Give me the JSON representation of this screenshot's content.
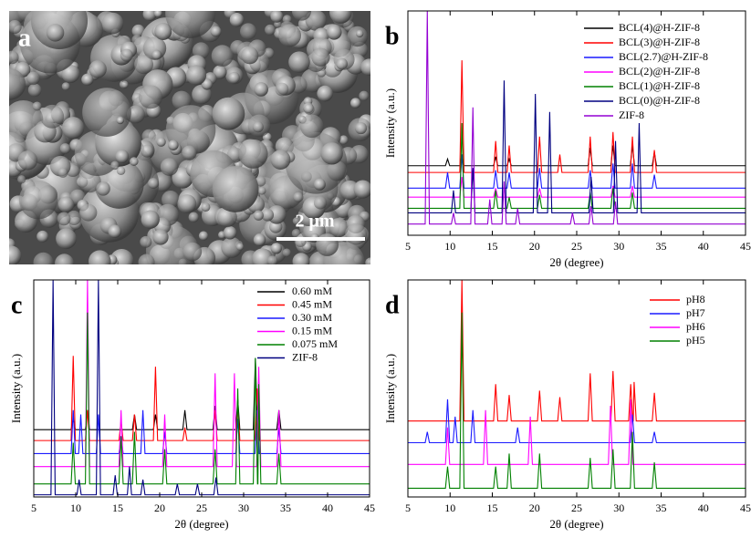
{
  "panel_a": {
    "label": "a",
    "scale_bar": "2 μm"
  },
  "chart_data": [
    {
      "type": "line",
      "panel_label": "b",
      "x_label": "2θ (degree)",
      "y_label": "Intensity (a.u.)",
      "xlim": [
        5,
        45
      ],
      "xticks": [
        5,
        10,
        15,
        20,
        25,
        30,
        35,
        40,
        45
      ],
      "ylim": [
        0,
        100
      ],
      "series": [
        {
          "name": "BCL(4)@H-ZIF-8",
          "color": "#000000",
          "x": [
            5,
            9.45,
            9.7,
            9.95,
            11.15,
            11.4,
            11.65,
            15.15,
            15.4,
            15.65,
            16.75,
            17,
            17.25,
            26.35,
            26.6,
            26.85,
            29.05,
            29.3,
            29.55,
            31.35,
            31.6,
            31.85,
            33.95,
            34.2,
            34.45,
            45
          ],
          "values": [
            31,
            31,
            34,
            31,
            31,
            36,
            31,
            31,
            35,
            31,
            31,
            34,
            31,
            31,
            39,
            31,
            31,
            40,
            31,
            31,
            40,
            31,
            31,
            37,
            31,
            31
          ]
        },
        {
          "name": "BCL(3)@H-ZIF-8",
          "color": "#ff0000",
          "x": [
            5,
            11.15,
            11.4,
            11.65,
            15.15,
            15.4,
            15.65,
            16.75,
            17,
            17.25,
            20.35,
            20.6,
            20.85,
            22.75,
            23,
            23.25,
            26.35,
            26.6,
            26.85,
            29.05,
            29.3,
            29.55,
            31.35,
            31.6,
            31.85,
            33.95,
            34.2,
            34.45,
            45
          ],
          "values": [
            28,
            28,
            78,
            28,
            28,
            42,
            28,
            28,
            40,
            28,
            28,
            44,
            28,
            28,
            36,
            28,
            28,
            44,
            28,
            28,
            46,
            28,
            28,
            44,
            28,
            28,
            38,
            28,
            28
          ]
        },
        {
          "name": "BCL(2.7)@H-ZIF-8",
          "color": "#1a1aff",
          "x": [
            5,
            9.45,
            9.7,
            9.95,
            11.15,
            11.4,
            11.65,
            15.15,
            15.4,
            15.65,
            16.75,
            17,
            17.25,
            20.35,
            20.6,
            20.85,
            26.35,
            26.6,
            26.85,
            29.05,
            29.3,
            29.55,
            31.35,
            31.6,
            31.85,
            33.95,
            34.2,
            34.45,
            45
          ],
          "values": [
            21,
            21,
            28,
            21,
            21,
            36,
            21,
            21,
            29,
            21,
            21,
            28,
            21,
            21,
            30,
            21,
            21,
            29,
            21,
            21,
            32,
            21,
            21,
            32,
            21,
            21,
            27,
            21,
            21
          ]
        },
        {
          "name": "BCL(2)@H-ZIF-8",
          "color": "#ff00ff",
          "x": [
            5,
            11.15,
            11.4,
            11.65,
            15.15,
            15.4,
            15.65,
            20.35,
            20.6,
            20.85,
            29.05,
            29.3,
            29.55,
            31.35,
            31.6,
            31.85,
            45
          ],
          "values": [
            17,
            17,
            26,
            17,
            17,
            21,
            17,
            17,
            21,
            17,
            17,
            22,
            17,
            17,
            22,
            17,
            17
          ]
        },
        {
          "name": "BCL(1)@H-ZIF-8",
          "color": "#008000",
          "x": [
            5,
            11.15,
            11.4,
            11.65,
            15.15,
            15.4,
            15.65,
            16.75,
            17,
            17.25,
            20.35,
            20.6,
            20.85,
            26.35,
            26.6,
            26.85,
            29.05,
            29.3,
            29.55,
            31.35,
            31.6,
            31.85,
            45
          ],
          "values": [
            12,
            12,
            50,
            12,
            12,
            20,
            12,
            12,
            17,
            12,
            12,
            18,
            12,
            12,
            19,
            12,
            12,
            21,
            12,
            12,
            19,
            12,
            12
          ]
        },
        {
          "name": "BCL(0)@H-ZIF-8",
          "color": "#000080",
          "x": [
            5,
            10.15,
            10.4,
            10.65,
            12.45,
            12.7,
            12.95,
            16.15,
            16.4,
            16.65,
            19.85,
            20.1,
            20.35,
            21.55,
            21.8,
            22.05,
            26.45,
            26.7,
            26.95,
            29.35,
            29.6,
            29.85,
            32.15,
            32.4,
            32.65,
            45
          ],
          "values": [
            10,
            10,
            20,
            10,
            10,
            30,
            10,
            10,
            69,
            10,
            10,
            63,
            10,
            10,
            55,
            10,
            10,
            26,
            10,
            10,
            42,
            10,
            10,
            50,
            10,
            10
          ]
        },
        {
          "name": "ZIF-8",
          "color": "#9400d3",
          "x": [
            5,
            7.05,
            7.3,
            7.55,
            10.15,
            10.4,
            10.65,
            12.45,
            12.7,
            12.95,
            14.45,
            14.7,
            14.95,
            16.15,
            16.4,
            16.65,
            17.75,
            18,
            18.25,
            24.25,
            24.5,
            24.75,
            26.45,
            26.7,
            26.95,
            29.35,
            29.6,
            29.85,
            45
          ],
          "values": [
            5,
            5,
            100,
            5,
            5,
            10,
            5,
            5,
            57,
            5,
            5,
            16,
            5,
            5,
            24,
            5,
            5,
            12,
            5,
            5,
            10,
            5,
            5,
            13,
            5,
            5,
            15,
            5,
            5
          ]
        }
      ]
    },
    {
      "type": "line",
      "panel_label": "c",
      "x_label": "2θ (degree)",
      "y_label": "Intensity (a.u.)",
      "xlim": [
        5,
        45
      ],
      "xticks": [
        5,
        10,
        15,
        20,
        25,
        30,
        35,
        40,
        45
      ],
      "ylim": [
        0,
        100
      ],
      "series": [
        {
          "name": "0.60 mM",
          "color": "#000000",
          "x": [
            5,
            9.45,
            9.7,
            9.95,
            11.15,
            11.4,
            11.65,
            16.75,
            17,
            17.25,
            19.25,
            19.5,
            19.75,
            22.75,
            23,
            23.25,
            26.35,
            26.6,
            26.85,
            29.05,
            29.3,
            29.55,
            31.15,
            31.4,
            31.65,
            33.95,
            34.2,
            34.45,
            45
          ],
          "values": [
            31,
            31,
            36,
            31,
            31,
            40,
            31,
            31,
            38,
            31,
            31,
            38,
            31,
            31,
            40,
            31,
            31,
            42,
            31,
            31,
            45,
            31,
            31,
            64,
            31,
            31,
            40,
            31,
            31
          ]
        },
        {
          "name": "0.45 mM",
          "color": "#ff0000",
          "x": [
            5,
            9.45,
            9.7,
            9.95,
            11.15,
            11.4,
            11.65,
            15.15,
            15.4,
            15.65,
            16.75,
            17,
            17.25,
            19.25,
            19.5,
            19.75,
            22.75,
            23,
            23.25,
            26.35,
            26.6,
            26.85,
            29.05,
            29.3,
            29.55,
            31.35,
            31.6,
            31.85,
            45
          ],
          "values": [
            26,
            26,
            65,
            26,
            26,
            40,
            26,
            26,
            35,
            26,
            26,
            38,
            26,
            26,
            60,
            26,
            26,
            32,
            26,
            26,
            40,
            26,
            26,
            42,
            26,
            26,
            50,
            26,
            26
          ]
        },
        {
          "name": "0.30 mM",
          "color": "#1a1aff",
          "x": [
            5,
            9.45,
            9.7,
            9.95,
            10.35,
            10.6,
            10.85,
            12.45,
            12.7,
            12.95,
            15.15,
            15.4,
            15.65,
            17.75,
            18,
            18.25,
            20.35,
            20.6,
            20.85,
            29.05,
            29.3,
            29.55,
            31.35,
            31.6,
            31.85,
            33.95,
            34.2,
            34.45,
            45
          ],
          "values": [
            20,
            20,
            40,
            20,
            20,
            38,
            20,
            20,
            38,
            20,
            20,
            28,
            20,
            20,
            40,
            20,
            20,
            30,
            20,
            20,
            36,
            20,
            20,
            40,
            20,
            20,
            32,
            20,
            20
          ]
        },
        {
          "name": "0.15 mM",
          "color": "#ff00ff",
          "x": [
            5,
            11.15,
            11.4,
            11.65,
            15.15,
            15.4,
            15.65,
            20.35,
            20.6,
            20.85,
            26.35,
            26.6,
            26.85,
            28.65,
            28.9,
            29.15,
            31.55,
            31.8,
            32.05,
            33.95,
            34.2,
            34.45,
            45
          ],
          "values": [
            14,
            14,
            100,
            14,
            14,
            40,
            14,
            14,
            38,
            14,
            14,
            57,
            14,
            14,
            57,
            14,
            14,
            60,
            14,
            14,
            40,
            14,
            14
          ]
        },
        {
          "name": "0.075 mM",
          "color": "#008000",
          "x": [
            5,
            9.45,
            9.7,
            9.95,
            11.15,
            11.4,
            11.65,
            15.15,
            15.4,
            15.65,
            16.75,
            17,
            17.25,
            20.35,
            20.6,
            20.85,
            26.35,
            26.6,
            26.85,
            29.05,
            29.3,
            29.55,
            31.15,
            31.4,
            31.65,
            31.7,
            31.8,
            32.05,
            33.95,
            34.2,
            34.45,
            45
          ],
          "values": [
            6,
            6,
            25,
            6,
            6,
            85,
            6,
            6,
            28,
            6,
            6,
            30,
            6,
            6,
            22,
            6,
            6,
            22,
            6,
            6,
            50,
            6,
            6,
            64,
            6,
            6,
            52,
            6,
            6,
            20,
            6,
            6
          ]
        },
        {
          "name": "ZIF-8",
          "color": "#000080",
          "x": [
            5,
            7.05,
            7.3,
            7.55,
            10.15,
            10.4,
            10.65,
            12.45,
            12.7,
            12.95,
            14.45,
            14.7,
            14.95,
            16.15,
            16.4,
            16.65,
            17.75,
            18,
            18.25,
            21.85,
            22.1,
            22.35,
            24.25,
            24.5,
            24.75,
            26.45,
            26.7,
            26.95,
            45
          ],
          "values": [
            1,
            1,
            100,
            1,
            1,
            8,
            1,
            1,
            100,
            1,
            1,
            10,
            1,
            1,
            14,
            1,
            1,
            8,
            1,
            1,
            6,
            1,
            1,
            6,
            1,
            1,
            9,
            1,
            1
          ]
        }
      ]
    },
    {
      "type": "line",
      "panel_label": "d",
      "x_label": "2θ (degree)",
      "y_label": "Intensity (a.u.)",
      "xlim": [
        5,
        45
      ],
      "xticks": [
        5,
        10,
        15,
        20,
        25,
        30,
        35,
        40,
        45
      ],
      "ylim": [
        0,
        100
      ],
      "series": [
        {
          "name": "pH8",
          "color": "#ff0000",
          "x": [
            5,
            11.15,
            11.4,
            11.65,
            15.15,
            15.4,
            15.65,
            16.75,
            17,
            17.25,
            20.35,
            20.6,
            20.85,
            22.75,
            23,
            23.25,
            26.35,
            26.6,
            26.85,
            29.05,
            29.3,
            29.55,
            31.15,
            31.4,
            31.65,
            31.7,
            31.8,
            32.05,
            33.95,
            34.2,
            34.45,
            45
          ],
          "values": [
            35,
            35,
            100,
            35,
            35,
            52,
            35,
            35,
            47,
            35,
            35,
            49,
            35,
            35,
            46,
            35,
            35,
            57,
            35,
            35,
            58,
            35,
            35,
            52,
            35,
            35,
            53,
            35,
            35,
            48,
            35,
            35
          ]
        },
        {
          "name": "pH7",
          "color": "#1a1aff",
          "x": [
            5,
            7.05,
            7.3,
            7.55,
            9.45,
            9.7,
            9.95,
            10.35,
            10.6,
            10.85,
            12.45,
            12.7,
            12.95,
            17.75,
            18,
            18.25,
            31.35,
            31.6,
            31.85,
            33.95,
            34.2,
            34.45,
            45
          ],
          "values": [
            25,
            25,
            30,
            25,
            25,
            45,
            25,
            25,
            37,
            25,
            25,
            40,
            25,
            25,
            32,
            25,
            25,
            38,
            25,
            25,
            30,
            25,
            25
          ]
        },
        {
          "name": "pH6",
          "color": "#ff00ff",
          "x": [
            5,
            9.45,
            9.7,
            9.95,
            13.95,
            14.2,
            14.45,
            19.25,
            19.5,
            19.75,
            28.75,
            29,
            29.25,
            31.15,
            31.4,
            31.65,
            45
          ],
          "values": [
            15,
            15,
            32,
            15,
            15,
            40,
            15,
            15,
            37,
            15,
            15,
            42,
            15,
            15,
            45,
            15,
            15
          ]
        },
        {
          "name": "pH5",
          "color": "#008000",
          "x": [
            5,
            9.45,
            9.7,
            9.95,
            11.15,
            11.4,
            11.65,
            15.15,
            15.4,
            15.65,
            16.75,
            17,
            17.25,
            20.35,
            20.6,
            20.85,
            26.35,
            26.6,
            26.85,
            29.05,
            29.3,
            29.55,
            31.35,
            31.6,
            31.85,
            33.95,
            34.2,
            34.45,
            45
          ],
          "values": [
            4,
            4,
            14,
            4,
            4,
            85,
            4,
            4,
            14,
            4,
            4,
            20,
            4,
            4,
            20,
            4,
            4,
            18,
            4,
            4,
            22,
            4,
            4,
            30,
            4,
            4,
            16,
            4,
            4
          ]
        }
      ]
    }
  ]
}
